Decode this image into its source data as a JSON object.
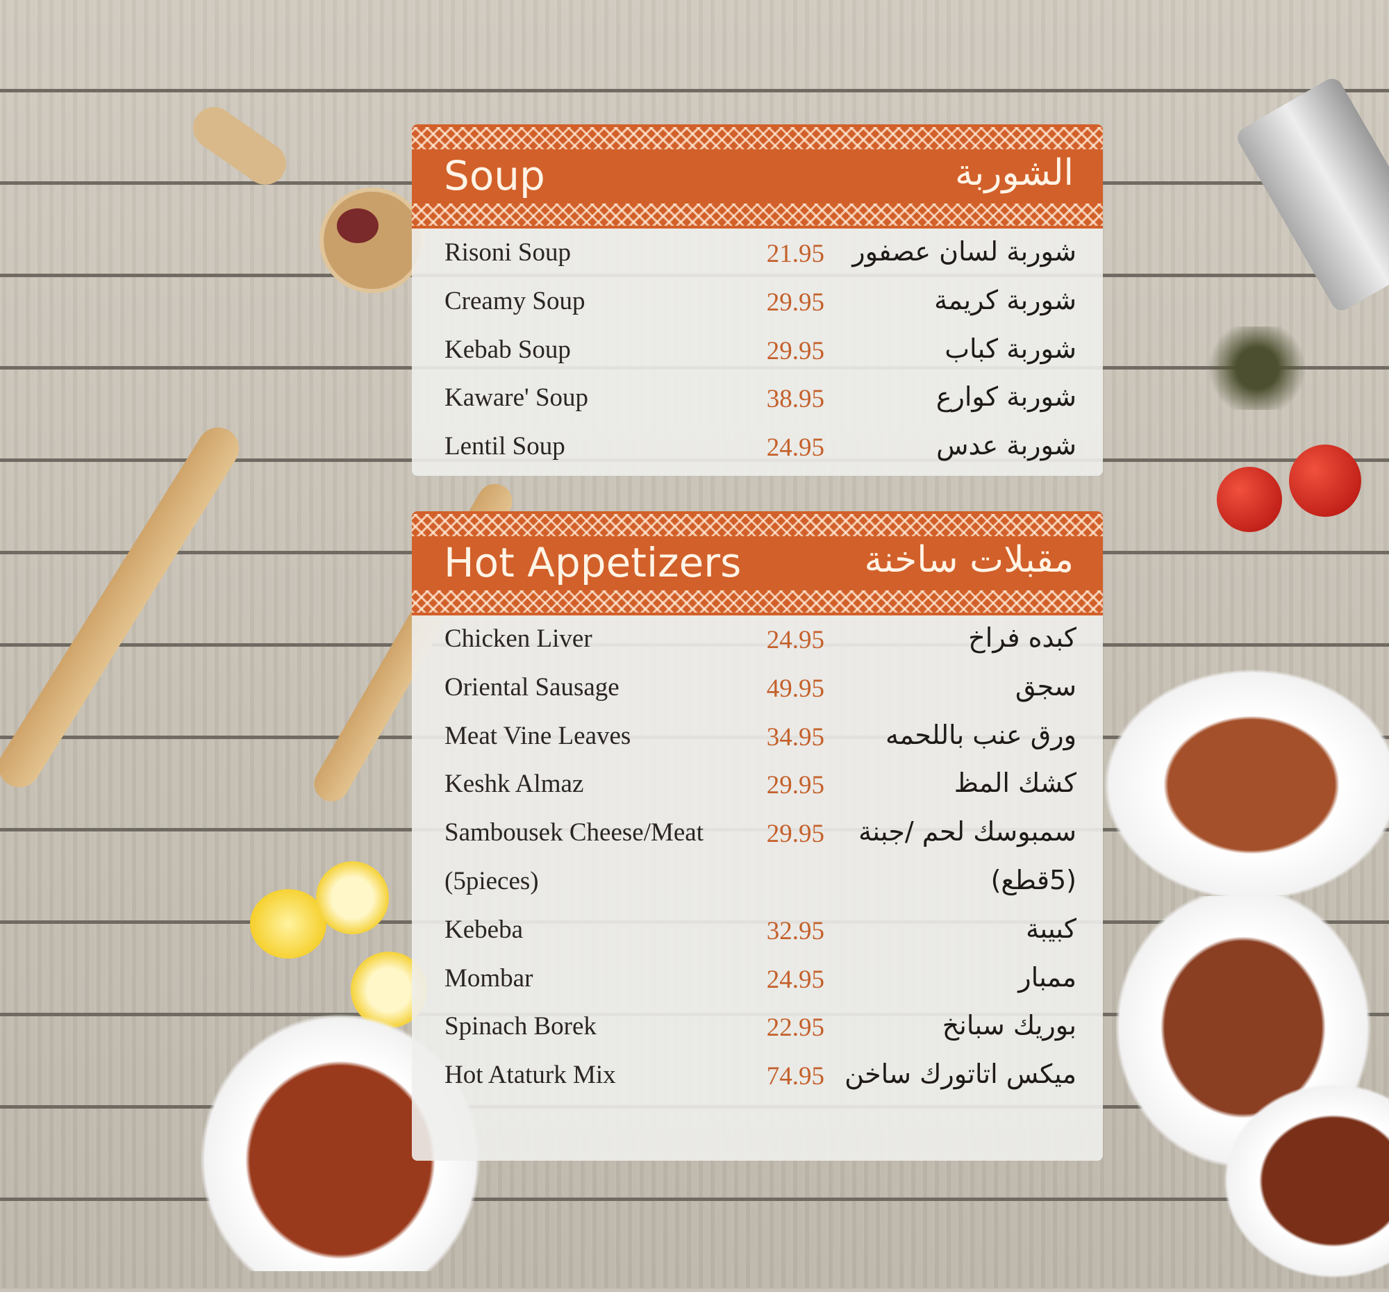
{
  "colors": {
    "accent": "#d2602a",
    "price": "#c4602a",
    "panel": "#eeeeec"
  },
  "sections": [
    {
      "title_en": "Soup",
      "title_ar": "الشوربة",
      "items": [
        {
          "en": "Risoni Soup",
          "price": "21.95",
          "ar": "شوربة لسان عصفور"
        },
        {
          "en": "Creamy Soup",
          "price": "29.95",
          "ar": "شوربة كريمة"
        },
        {
          "en": "Kebab Soup",
          "price": "29.95",
          "ar": "شوربة كباب"
        },
        {
          "en": "Kaware' Soup",
          "price": "38.95",
          "ar": "شوربة كوارع"
        },
        {
          "en": "Lentil Soup",
          "price": "24.95",
          "ar": "شوربة عدس"
        }
      ]
    },
    {
      "title_en": "Hot Appetizers",
      "title_ar": "مقبلات ساخنة",
      "items": [
        {
          "en": "Chicken Liver",
          "price": "24.95",
          "ar": "كبده فراخ"
        },
        {
          "en": "Oriental Sausage",
          "price": "49.95",
          "ar": "سجق"
        },
        {
          "en": "Meat Vine Leaves",
          "price": "34.95",
          "ar": "ورق عنب باللحمه"
        },
        {
          "en": "Keshk Almaz",
          "price": "29.95",
          "ar": "كشك المظ"
        },
        {
          "en": "Sambousek Cheese/Meat",
          "price": "29.95",
          "ar": "سمبوسك لحم /جبنة"
        },
        {
          "en": "(5pieces)",
          "price": "",
          "ar": "(5قطع)"
        },
        {
          "en": "Kebeba",
          "price": "32.95",
          "ar": "كبيبة"
        },
        {
          "en": "Mombar",
          "price": "24.95",
          "ar": "ممبار"
        },
        {
          "en": "Spinach Borek",
          "price": "22.95",
          "ar": "بوريك سبانخ"
        },
        {
          "en": "Hot Ataturk Mix",
          "price": "74.95",
          "ar": "ميكس اتاتورك ساخن"
        }
      ]
    }
  ]
}
